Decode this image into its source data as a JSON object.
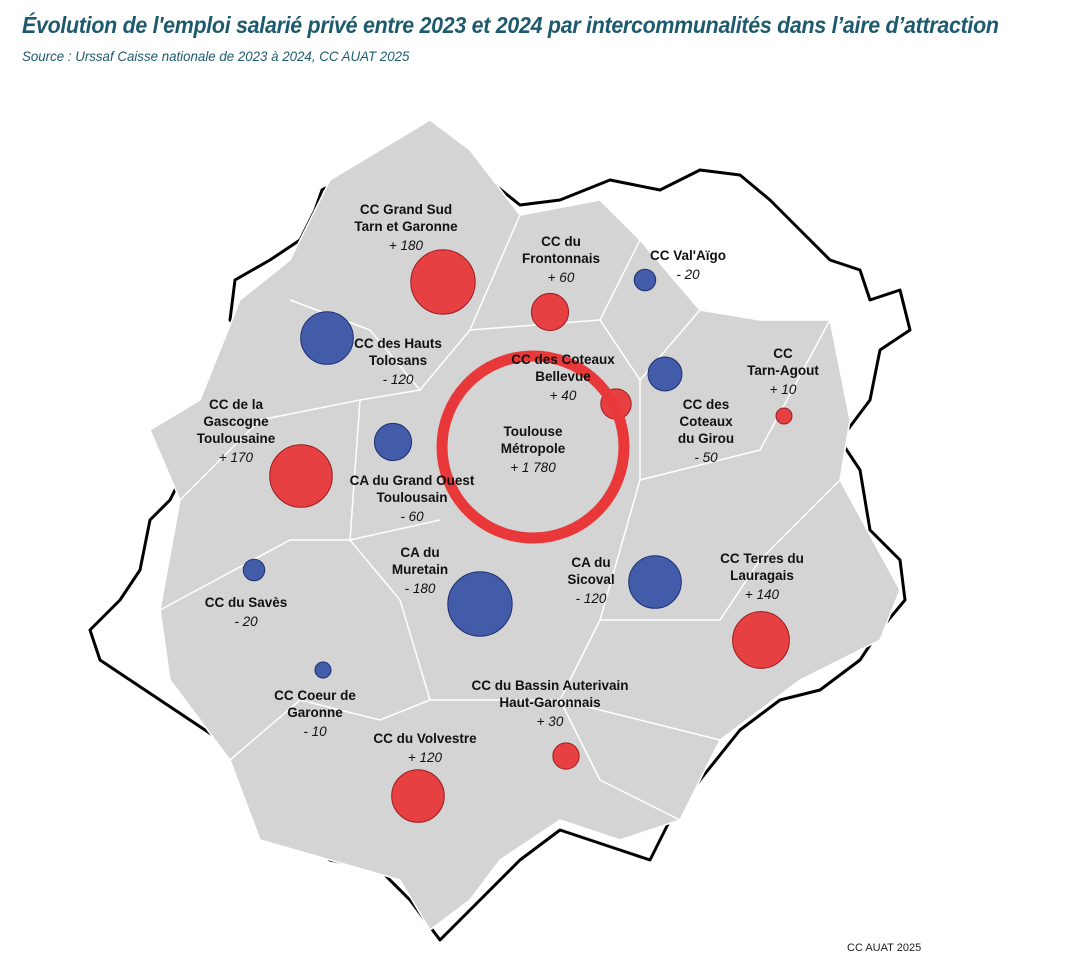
{
  "title": "Évolution de l'emploi salarié privé entre 2023 et 2024 par intercommunalités dans l’aire d’attraction",
  "source": "Source : Urssaf Caisse nationale de 2023 à 2024, CC AUAT 2025",
  "credit": "CC AUAT 2025",
  "colors": {
    "increase": "#e8383a",
    "decrease": "#3a55a6",
    "territory": "#d4d4d4",
    "boundary": "#ffffff",
    "outline": "#000000"
  },
  "territories": [
    {
      "name": [
        "CC Grand Sud",
        "Tarn et Garonne"
      ],
      "value": "+ 180",
      "change": 180
    },
    {
      "name": [
        "CC du",
        "Frontonnais"
      ],
      "value": "+ 60",
      "change": 60
    },
    {
      "name": [
        "CC Val'Aïgo"
      ],
      "value": "- 20",
      "change": -20
    },
    {
      "name": [
        "CC des Hauts",
        "Tolosans"
      ],
      "value": "- 120",
      "change": -120
    },
    {
      "name": [
        "CC des Coteaux",
        "Bellevue"
      ],
      "value": "+ 40",
      "change": 40
    },
    {
      "name": [
        "CC des",
        "Coteaux",
        "du Girou"
      ],
      "value": "- 50",
      "change": -50
    },
    {
      "name": [
        "CC",
        "Tarn-Agout"
      ],
      "value": "+ 10",
      "change": 10
    },
    {
      "name": [
        "Toulouse",
        "Métropole"
      ],
      "value": "+ 1 780",
      "change": 1780
    },
    {
      "name": [
        "CC de la",
        "Gascogne",
        "Toulousaine"
      ],
      "value": "+ 170",
      "change": 170
    },
    {
      "name": [
        "CA du Grand Ouest",
        "Toulousain"
      ],
      "value": "- 60",
      "change": -60
    },
    {
      "name": [
        "CC du Savès"
      ],
      "value": "- 20",
      "change": -20
    },
    {
      "name": [
        "CA du",
        "Muretain"
      ],
      "value": "- 180",
      "change": -180
    },
    {
      "name": [
        "CA du",
        "Sicoval"
      ],
      "value": "- 120",
      "change": -120
    },
    {
      "name": [
        "CC Terres du",
        "Lauragais"
      ],
      "value": "+ 140",
      "change": 140
    },
    {
      "name": [
        "CC Coeur de",
        "Garonne"
      ],
      "value": "- 10",
      "change": -10
    },
    {
      "name": [
        "CC du Bassin Auterivain",
        "Haut-Garonnais"
      ],
      "value": "+ 30",
      "change": 30
    },
    {
      "name": [
        "CC du Volvestre"
      ],
      "value": "+ 120",
      "change": 120
    }
  ]
}
